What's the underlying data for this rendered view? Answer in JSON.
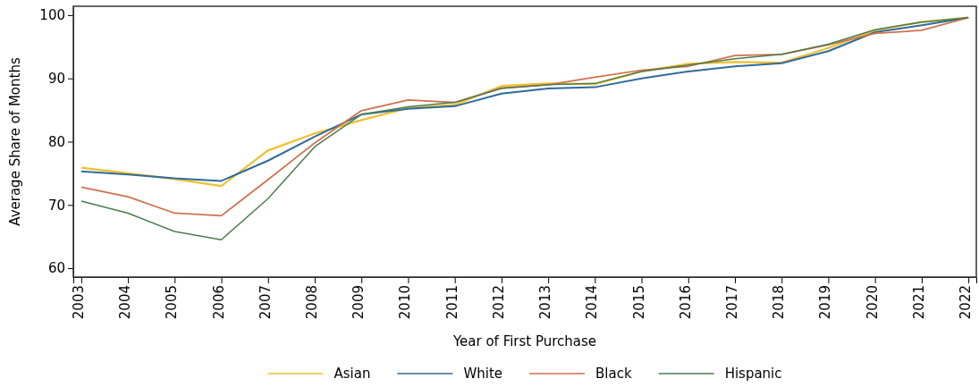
{
  "chart_data": {
    "type": "line",
    "xlabel": "Year of First Purchase",
    "ylabel": "Average Share of Months",
    "categories": [
      "2003",
      "2004",
      "2005",
      "2006",
      "2007",
      "2008",
      "2009",
      "2010",
      "2011",
      "2012",
      "2013",
      "2014",
      "2015",
      "2016",
      "2017",
      "2018",
      "2019",
      "2020",
      "2021",
      "2022"
    ],
    "series": [
      {
        "name": "Asian",
        "color": "#f0c030",
        "values": [
          75.9,
          75.0,
          74.1,
          73.0,
          78.6,
          81.3,
          83.4,
          85.3,
          85.8,
          88.8,
          89.2,
          89.1,
          91.1,
          92.3,
          92.6,
          92.5,
          94.8,
          97.6,
          98.9,
          99.6
        ]
      },
      {
        "name": "White",
        "color": "#2e6b9e",
        "values": [
          75.3,
          74.8,
          74.2,
          73.8,
          77.0,
          80.8,
          84.3,
          85.2,
          85.6,
          87.6,
          88.4,
          88.6,
          90.0,
          91.1,
          91.9,
          92.4,
          94.3,
          97.3,
          98.4,
          99.6
        ]
      },
      {
        "name": "Black",
        "color": "#d0714b",
        "values": [
          72.8,
          71.3,
          68.7,
          68.3,
          74.0,
          79.8,
          84.9,
          86.6,
          86.2,
          88.5,
          89.0,
          90.2,
          91.3,
          91.9,
          93.6,
          93.8,
          95.3,
          97.1,
          97.6,
          99.6
        ]
      },
      {
        "name": "Hispanic",
        "color": "#4d7d4f",
        "values": [
          70.6,
          68.7,
          65.8,
          64.5,
          71.0,
          79.2,
          84.3,
          85.5,
          86.2,
          88.4,
          89.0,
          89.2,
          91.1,
          92.1,
          93.1,
          93.8,
          95.4,
          97.7,
          98.9,
          99.6
        ]
      }
    ],
    "ylim": [
      58.6,
      101.4
    ],
    "yticks": [
      60,
      70,
      80,
      90,
      100
    ],
    "grid": false,
    "legend": "bottom",
    "marker": "none",
    "line_style": "solid"
  }
}
